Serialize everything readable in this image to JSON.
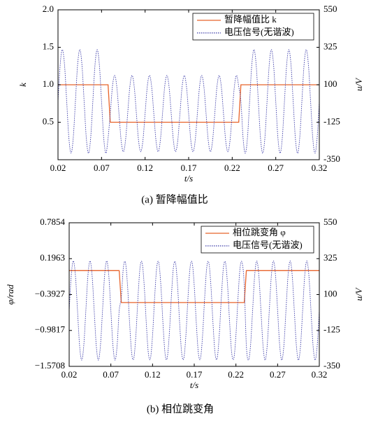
{
  "chart_data": [
    {
      "type": "line",
      "title": "(a) 暂降幅值比",
      "xlabel": "t/s",
      "ylabel": "k",
      "y2label": "u/V",
      "xlim": [
        0.02,
        0.32
      ],
      "xticks": [
        0.02,
        0.07,
        0.12,
        0.17,
        0.22,
        0.27,
        0.32
      ],
      "ylim": [
        0,
        2
      ],
      "yticks": [
        0.5,
        {
          "value": 1,
          "label": "1.0"
        },
        1.5,
        {
          "value": 2,
          "label": "2.0"
        }
      ],
      "y2lim": [
        -350,
        550
      ],
      "y2ticks": [
        -350,
        -125,
        100,
        325,
        550
      ],
      "legend": "upper right",
      "x": [
        0.02,
        0.0225,
        0.025,
        0.0275,
        0.03,
        0.0325,
        0.035,
        0.0375,
        0.04,
        0.0425,
        0.045,
        0.0475,
        0.05,
        0.0525,
        0.055,
        0.0575,
        0.06,
        0.0625,
        0.065,
        0.0675,
        0.07,
        0.0725,
        0.075,
        0.0775,
        0.08,
        0.0825,
        0.085,
        0.0875,
        0.09,
        0.0925,
        0.095,
        0.0975,
        0.1,
        0.1025,
        0.105,
        0.1075,
        0.11,
        0.1125,
        0.115,
        0.1175,
        0.12,
        0.1225,
        0.125,
        0.1275,
        0.13,
        0.1325,
        0.135,
        0.1375,
        0.14,
        0.1425,
        0.145,
        0.1475,
        0.15,
        0.1525,
        0.155,
        0.1575,
        0.16,
        0.1625,
        0.165,
        0.1675,
        0.17,
        0.1725,
        0.175,
        0.1775,
        0.18,
        0.1825,
        0.185,
        0.1875,
        0.19,
        0.1925,
        0.195,
        0.1975,
        0.2,
        0.2025,
        0.205,
        0.2075,
        0.21,
        0.2125,
        0.215,
        0.2175,
        0.22,
        0.2225,
        0.225,
        0.2275,
        0.23,
        0.2325,
        0.235,
        0.2375,
        0.24,
        0.2425,
        0.245,
        0.2475,
        0.25,
        0.2525,
        0.255,
        0.2575,
        0.26,
        0.2625,
        0.265,
        0.2675,
        0.27,
        0.2725,
        0.275,
        0.2775,
        0.28,
        0.2825,
        0.285,
        0.2875,
        0.29,
        0.2925,
        0.295,
        0.2975,
        0.3,
        0.3025,
        0.305,
        0.3075,
        0.31,
        0.3125,
        0.315,
        0.3175,
        0.32
      ],
      "series": [
        {
          "name": "暂降幅值比 k",
          "color": "#e8632a",
          "linestyle": "solid",
          "interpolation": "linear",
          "values": [
            1,
            1,
            1,
            1,
            1,
            1,
            1,
            1,
            1,
            1,
            1,
            1,
            1,
            1,
            1,
            1,
            1,
            1,
            1,
            1,
            1,
            1,
            1,
            1,
            0.5,
            0.5,
            0.5,
            0.5,
            0.5,
            0.5,
            0.5,
            0.5,
            0.5,
            0.5,
            0.5,
            0.5,
            0.5,
            0.5,
            0.5,
            0.5,
            0.5,
            0.5,
            0.5,
            0.5,
            0.5,
            0.5,
            0.5,
            0.5,
            0.5,
            0.5,
            0.5,
            0.5,
            0.5,
            0.5,
            0.5,
            0.5,
            0.5,
            0.5,
            0.5,
            0.5,
            0.5,
            0.5,
            0.5,
            0.5,
            0.5,
            0.5,
            0.5,
            0.5,
            0.5,
            0.5,
            0.5,
            0.5,
            0.5,
            0.5,
            0.5,
            0.5,
            0.5,
            0.5,
            0.5,
            0.5,
            0.5,
            0.5,
            0.5,
            0.5,
            1,
            1,
            1,
            1,
            1,
            1,
            1,
            1,
            1,
            1,
            1,
            1,
            1,
            1,
            1,
            1,
            1,
            1,
            1,
            1,
            1,
            1,
            1,
            1,
            1,
            1,
            1,
            1,
            1,
            1,
            1,
            1,
            1,
            1,
            1,
            1,
            1
          ]
        },
        {
          "name": "电压信号(无谐波)",
          "color": "#3a3aa8",
          "linestyle": "dotted",
          "interpolation": "spline",
          "axis": "y2",
          "values": [
            0,
            220,
            311,
            220,
            0,
            -220,
            -311,
            -220,
            0,
            220,
            311,
            220,
            0,
            -220,
            -311,
            -220,
            0,
            220,
            311,
            220,
            0,
            -220,
            -311,
            -220,
            -73,
            89,
            156,
            89,
            -73,
            -235,
            -302,
            -235,
            -73,
            89,
            156,
            89,
            -73,
            -235,
            -302,
            -235,
            -73,
            89,
            156,
            89,
            -73,
            -235,
            -302,
            -235,
            -73,
            89,
            156,
            89,
            -73,
            -235,
            -302,
            -235,
            -73,
            89,
            156,
            89,
            -73,
            -235,
            -302,
            -235,
            -73,
            89,
            156,
            89,
            -73,
            -235,
            -302,
            -235,
            -73,
            89,
            156,
            89,
            -73,
            -235,
            -302,
            -235,
            -73,
            89,
            156,
            89,
            0,
            -220,
            -311,
            -220,
            0,
            220,
            311,
            220,
            0,
            -220,
            -311,
            -220,
            0,
            220,
            311,
            220,
            0,
            -220,
            -311,
            -220,
            0,
            220,
            311,
            220,
            0,
            -220,
            -311,
            -220,
            0,
            220,
            311,
            220,
            0,
            -220,
            -311,
            -220,
            0
          ]
        }
      ]
    },
    {
      "type": "line",
      "title": "(b) 相位跳变角",
      "xlabel": "t/s",
      "ylabel": "φ/rad",
      "y2label": "u/V",
      "xlim": [
        0.02,
        0.32
      ],
      "xticks": [
        0.02,
        0.07,
        0.12,
        0.17,
        0.22,
        0.27,
        0.32
      ],
      "ylim": [
        -1.5708,
        0.7854
      ],
      "yticks": [
        {
          "value": -1.5708,
          "label": "−1.5708"
        },
        {
          "value": -0.9817,
          "label": "−0.9817"
        },
        {
          "value": -0.3927,
          "label": "−0.3927"
        },
        0.1963,
        0.7854
      ],
      "y2lim": [
        -350,
        550
      ],
      "y2ticks": [
        -350,
        -125,
        100,
        325,
        550
      ],
      "legend": "upper right",
      "x": [
        0.02,
        0.0225,
        0.025,
        0.0275,
        0.03,
        0.0325,
        0.035,
        0.0375,
        0.04,
        0.0425,
        0.045,
        0.0475,
        0.05,
        0.0525,
        0.055,
        0.0575,
        0.06,
        0.0625,
        0.065,
        0.0675,
        0.07,
        0.0725,
        0.075,
        0.0775,
        0.08,
        0.0825,
        0.085,
        0.0875,
        0.09,
        0.0925,
        0.095,
        0.0975,
        0.1,
        0.1025,
        0.105,
        0.1075,
        0.11,
        0.1125,
        0.115,
        0.1175,
        0.12,
        0.1225,
        0.125,
        0.1275,
        0.13,
        0.1325,
        0.135,
        0.1375,
        0.14,
        0.1425,
        0.145,
        0.1475,
        0.15,
        0.1525,
        0.155,
        0.1575,
        0.16,
        0.1625,
        0.165,
        0.1675,
        0.17,
        0.1725,
        0.175,
        0.1775,
        0.18,
        0.1825,
        0.185,
        0.1875,
        0.19,
        0.1925,
        0.195,
        0.1975,
        0.2,
        0.2025,
        0.205,
        0.2075,
        0.21,
        0.2125,
        0.215,
        0.2175,
        0.22,
        0.2225,
        0.225,
        0.2275,
        0.23,
        0.2325,
        0.235,
        0.2375,
        0.24,
        0.2425,
        0.245,
        0.2475,
        0.25,
        0.2525,
        0.255,
        0.2575,
        0.26,
        0.2625,
        0.265,
        0.2675,
        0.27,
        0.2725,
        0.275,
        0.2775,
        0.28,
        0.2825,
        0.285,
        0.2875,
        0.29,
        0.2925,
        0.295,
        0.2975,
        0.3,
        0.3025,
        0.305,
        0.3075,
        0.31,
        0.3125,
        0.315,
        0.3175,
        0.32
      ],
      "series": [
        {
          "name": "相位跳变角 φ",
          "color": "#e8632a",
          "linestyle": "solid",
          "interpolation": "linear",
          "values": [
            0,
            0,
            0,
            0,
            0,
            0,
            0,
            0,
            0,
            0,
            0,
            0,
            0,
            0,
            0,
            0,
            0,
            0,
            0,
            0,
            0,
            0,
            0,
            0,
            0,
            -0.5236,
            -0.5236,
            -0.5236,
            -0.5236,
            -0.5236,
            -0.5236,
            -0.5236,
            -0.5236,
            -0.5236,
            -0.5236,
            -0.5236,
            -0.5236,
            -0.5236,
            -0.5236,
            -0.5236,
            -0.5236,
            -0.5236,
            -0.5236,
            -0.5236,
            -0.5236,
            -0.5236,
            -0.5236,
            -0.5236,
            -0.5236,
            -0.5236,
            -0.5236,
            -0.5236,
            -0.5236,
            -0.5236,
            -0.5236,
            -0.5236,
            -0.5236,
            -0.5236,
            -0.5236,
            -0.5236,
            -0.5236,
            -0.5236,
            -0.5236,
            -0.5236,
            -0.5236,
            -0.5236,
            -0.5236,
            -0.5236,
            -0.5236,
            -0.5236,
            -0.5236,
            -0.5236,
            -0.5236,
            -0.5236,
            -0.5236,
            -0.5236,
            -0.5236,
            -0.5236,
            -0.5236,
            -0.5236,
            -0.5236,
            -0.5236,
            -0.5236,
            -0.5236,
            -0.5236,
            0,
            0,
            0,
            0,
            0,
            0,
            0,
            0,
            0,
            0,
            0,
            0,
            0,
            0,
            0,
            0,
            0,
            0,
            0,
            0,
            0,
            0,
            0,
            0,
            0,
            0,
            0,
            0,
            0,
            0,
            0,
            0,
            0,
            0,
            0,
            0
          ]
        },
        {
          "name": "电压信号(无谐波)",
          "color": "#3a3aa8",
          "linestyle": "dotted",
          "interpolation": "spline",
          "axis": "y2",
          "values": [
            0,
            220,
            311,
            220,
            0,
            -220,
            -311,
            -220,
            0,
            220,
            311,
            220,
            0,
            -220,
            -311,
            -220,
            0,
            220,
            311,
            220,
            0,
            -220,
            -311,
            -220,
            0,
            80,
            269,
            300,
            156,
            -80,
            -269,
            -300,
            -156,
            80,
            269,
            300,
            156,
            -80,
            -269,
            -300,
            -156,
            80,
            269,
            300,
            156,
            -80,
            -269,
            -300,
            -156,
            80,
            269,
            300,
            156,
            -80,
            -269,
            -300,
            -156,
            80,
            269,
            300,
            156,
            -80,
            -269,
            -300,
            -156,
            80,
            269,
            300,
            156,
            -80,
            -269,
            -300,
            -156,
            80,
            269,
            300,
            156,
            -80,
            -269,
            -300,
            -156,
            80,
            269,
            300,
            156,
            -220,
            -311,
            -220,
            0,
            220,
            311,
            220,
            0,
            -220,
            -311,
            -220,
            0,
            220,
            311,
            220,
            0,
            -220,
            -311,
            -220,
            0,
            220,
            311,
            220,
            0,
            -220,
            -311,
            -220,
            0,
            220,
            311,
            220,
            0,
            -220,
            -311,
            -220,
            0
          ]
        }
      ]
    }
  ]
}
